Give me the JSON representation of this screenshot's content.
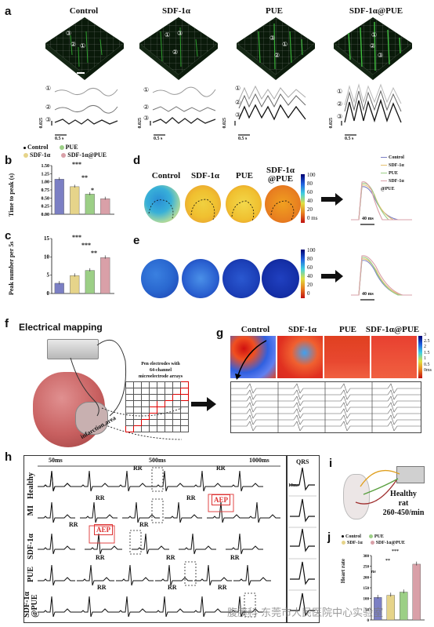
{
  "panel_labels": {
    "a": "a",
    "b": "b",
    "c": "c",
    "d": "d",
    "e": "e",
    "f": "f",
    "g": "g",
    "h": "h",
    "i": "i",
    "j": "j"
  },
  "groups": [
    "Control",
    "SDF-1α",
    "PUE",
    "SDF-1α@PUE"
  ],
  "groups_d": [
    "Control",
    "SDF-1α",
    "PUE",
    "SDF-1α\n@PUE"
  ],
  "trace_labels": [
    "①",
    "②",
    "③"
  ],
  "scale_a": {
    "amp": "0.025",
    "time": "0.5 s"
  },
  "colors": {
    "control": "#7b7fc4",
    "sdf": "#e6d48a",
    "pue": "#9ccf86",
    "combo": "#d9a0a8",
    "map_red": "#d83a2a",
    "map_blue": "#2050c8",
    "highlight": "#e02020"
  },
  "legend": {
    "items": [
      "Control",
      "PUE",
      "SDF-1α",
      "SDF-1α@PUE"
    ]
  },
  "legend_d": [
    "Control",
    "SDF-1α",
    "PUE",
    "SDF-1α\n@PUE"
  ],
  "colorbar_d": {
    "max": "100",
    "ticks": [
      "100",
      "80",
      "60",
      "40",
      "20",
      "0"
    ],
    "unit": "ms"
  },
  "colorbar_e": {
    "ticks": [
      "100",
      "80",
      "60",
      "40",
      "20",
      "0"
    ]
  },
  "scale_d": "40 ms",
  "scale_e": "40 ms",
  "colorbar_g": {
    "ticks": [
      "3",
      "2.5",
      "2",
      "1.5",
      "1",
      "0.5",
      "0"
    ],
    "unit": "ms"
  },
  "f": {
    "title": "Electrical mapping",
    "electrode_text": "Pen electrodes with\n64-channel\nmicroelectrode arrays",
    "infarction": "infarction area"
  },
  "h": {
    "time_labels": [
      "50ms",
      "500ms",
      "1000ms"
    ],
    "rows": [
      "Healthy",
      "MI",
      "SDF-1α",
      "PUE",
      "SDF-1α\n@PUE"
    ],
    "rr": "RR",
    "aep": "AEP",
    "qrs": "QRS",
    "scale": "10ms"
  },
  "i": {
    "text": "Healthy\nrat\n260-450/min"
  },
  "ns": "ns",
  "sig": {
    "one": "*",
    "two": "**",
    "three": "***"
  },
  "watermark": "腹膜科  东莞市人民医院中心实验室",
  "chart_data": [
    {
      "id": "b",
      "type": "bar",
      "categories": [
        "Control",
        "SDF-1α",
        "PUE",
        "SDF-1α@PUE"
      ],
      "values": [
        1.08,
        0.85,
        0.62,
        0.48
      ],
      "ylabel": "Time to peak (s)",
      "ylim": [
        0,
        1.5
      ],
      "yticks": [
        "0.00",
        "0.25",
        "0.50",
        "0.75",
        "1.00",
        "1.25",
        "1.50"
      ]
    },
    {
      "id": "c",
      "type": "bar",
      "categories": [
        "Control",
        "SDF-1α",
        "PUE",
        "SDF-1α@PUE"
      ],
      "values": [
        2.8,
        4.9,
        6.3,
        9.8
      ],
      "ylabel": "Peak number per 5s",
      "ylim": [
        0,
        15
      ],
      "yticks": [
        "0",
        "5",
        "10",
        "15"
      ]
    },
    {
      "id": "j",
      "type": "bar",
      "categories": [
        "Control",
        "SDF-1α",
        "PUE",
        "SDF-1α@PUE"
      ],
      "values": [
        105,
        115,
        130,
        260
      ],
      "ylabel": "Heart rate",
      "ylim": [
        0,
        300
      ],
      "yticks": [
        "0",
        "50",
        "100",
        "150",
        "200",
        "250",
        "300"
      ]
    }
  ]
}
